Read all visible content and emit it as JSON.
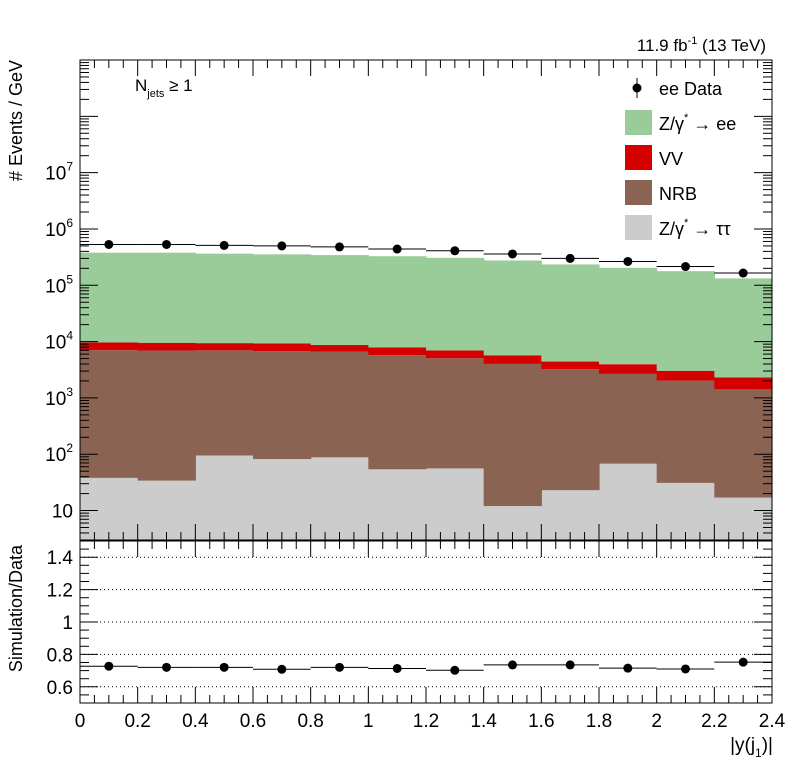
{
  "chart_data": [
    {
      "type": "bar",
      "stacked": true,
      "log_y": true,
      "ylabel": "# Events / GeV",
      "ylim": [
        3,
        1000000000
      ],
      "y_ticks": [
        {
          "value": 10,
          "base": "10",
          "exp": ""
        },
        {
          "value": 100,
          "base": "10",
          "exp": "2"
        },
        {
          "value": 1000,
          "base": "10",
          "exp": "3"
        },
        {
          "value": 10000,
          "base": "10",
          "exp": "4"
        },
        {
          "value": 100000,
          "base": "10",
          "exp": "5"
        },
        {
          "value": 1000000,
          "base": "10",
          "exp": "6"
        },
        {
          "value": 10000000,
          "base": "10",
          "exp": "7"
        }
      ],
      "lumi_text": {
        "prefix": "11.9 fb",
        "exp": "-1",
        "suffix": " (13 TeV)"
      },
      "annotation": {
        "base": "N",
        "sub": "jets",
        "rest": " ≥ 1"
      },
      "bin_edges": [
        0,
        0.2,
        0.4,
        0.6,
        0.8,
        1.0,
        1.2,
        1.4,
        1.6,
        1.8,
        2.0,
        2.2,
        2.4
      ],
      "series": [
        {
          "name": "Z/γ* → ττ",
          "color": "#cccccc",
          "values": [
            38,
            34,
            95,
            82,
            88,
            54,
            56,
            12,
            23,
            68,
            31,
            17
          ]
        },
        {
          "name": "NRB",
          "color": "#8b6352",
          "values": [
            7000,
            6900,
            6900,
            6700,
            6500,
            5700,
            5000,
            4000,
            3200,
            2600,
            2000,
            1400
          ]
        },
        {
          "name": "VV",
          "color": "#d40000",
          "values": [
            2600,
            2600,
            2400,
            2500,
            2100,
            2100,
            1900,
            1700,
            1200,
            1300,
            1000,
            900
          ]
        },
        {
          "name": "Z/γ* → ee",
          "color": "#99cc99",
          "values": [
            370000,
            370000,
            355000,
            345000,
            335000,
            320000,
            300000,
            270000,
            230000,
            200000,
            175000,
            130000
          ]
        }
      ],
      "data_points": {
        "name": "ee Data",
        "x": [
          0.1,
          0.3,
          0.5,
          0.7,
          0.9,
          1.1,
          1.3,
          1.5,
          1.7,
          1.9,
          2.1,
          2.3
        ],
        "y": [
          530000,
          530000,
          510000,
          500000,
          480000,
          440000,
          410000,
          360000,
          300000,
          265000,
          215000,
          165000
        ]
      },
      "legend": [
        {
          "label": "ee Data",
          "kind": "marker"
        },
        {
          "label": "Z/γ",
          "sup": "*",
          "tail": " → ee",
          "kind": "box",
          "color": "#99cc99"
        },
        {
          "label": "VV",
          "kind": "box",
          "color": "#d40000"
        },
        {
          "label": "NRB",
          "kind": "box",
          "color": "#8b6352"
        },
        {
          "label": "Z/γ",
          "sup": "*",
          "tail": " → ττ",
          "kind": "box",
          "color": "#cccccc"
        }
      ],
      "legend_position": "top-right"
    },
    {
      "type": "scatter",
      "ylabel": "Simulation/Data",
      "xlabel": {
        "base": "|y(j",
        "sub": "1",
        "tail": ")|"
      },
      "ylim": [
        0.5,
        1.5
      ],
      "y_ticks": [
        0.6,
        0.8,
        1,
        1.2,
        1.4
      ],
      "y_tick_labels": [
        "0.6",
        "0.8",
        "1",
        "1.2",
        "1.4"
      ],
      "gridlines": [
        0.6,
        0.8,
        1.0,
        1.2,
        1.4
      ],
      "xlim": [
        0,
        2.4
      ],
      "x_ticks": [
        0,
        0.2,
        0.4,
        0.6,
        0.8,
        1,
        1.2,
        1.4,
        1.6,
        1.8,
        2,
        2.2,
        2.4
      ],
      "x_tick_labels": [
        "0",
        "0.2",
        "0.4",
        "0.6",
        "0.8",
        "1",
        "1.2",
        "1.4",
        "1.6",
        "1.8",
        "2",
        "2.2",
        "2.4"
      ],
      "x": [
        0.1,
        0.3,
        0.5,
        0.7,
        0.9,
        1.1,
        1.3,
        1.5,
        1.7,
        1.9,
        2.1,
        2.3
      ],
      "values": [
        0.727,
        0.72,
        0.72,
        0.708,
        0.72,
        0.713,
        0.702,
        0.735,
        0.735,
        0.715,
        0.71,
        0.752
      ]
    }
  ]
}
